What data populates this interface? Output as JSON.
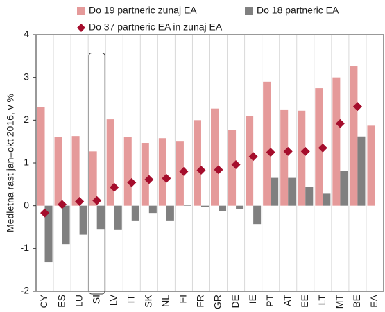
{
  "chart_data": {
    "type": "bar",
    "y_label": "Medletna rast jan–okt 2016, v %",
    "categories": [
      "CY",
      "ES",
      "LU",
      "SI",
      "LV",
      "IT",
      "SK",
      "NL",
      "FI",
      "FR",
      "GR",
      "DE",
      "IE",
      "PT",
      "AT",
      "EE",
      "LT",
      "MT",
      "BE",
      "EA"
    ],
    "series": [
      {
        "name": "Do 19 partneric zunaj EA",
        "color": "#e59a9a",
        "marker": "bar",
        "values": [
          2.3,
          1.6,
          1.63,
          1.27,
          2.02,
          1.6,
          1.47,
          1.58,
          1.5,
          2.0,
          2.27,
          1.77,
          2.1,
          2.9,
          2.25,
          2.22,
          2.75,
          3.0,
          3.27,
          1.87
        ]
      },
      {
        "name": "Do 18 partneric EA",
        "color": "#808080",
        "marker": "bar",
        "values": [
          -1.32,
          -0.9,
          -0.68,
          -0.56,
          -0.57,
          -0.36,
          -0.17,
          -0.36,
          0.02,
          -0.03,
          -0.12,
          -0.07,
          -0.43,
          0.65,
          0.65,
          0.44,
          0.28,
          0.82,
          1.62,
          null
        ]
      },
      {
        "name": "Do 37 partneric EA in zunaj EA",
        "color": "#a50d2c",
        "marker": "diamond",
        "values": [
          -0.17,
          0.03,
          0.1,
          0.12,
          0.43,
          0.54,
          0.61,
          0.64,
          0.8,
          0.83,
          0.84,
          0.96,
          1.15,
          1.25,
          1.27,
          1.27,
          1.35,
          1.92,
          2.32,
          null
        ]
      }
    ],
    "ylim": [
      -2,
      4
    ],
    "yticks": [
      -2,
      -1,
      0,
      1,
      2,
      3,
      4
    ],
    "grid": false
  }
}
